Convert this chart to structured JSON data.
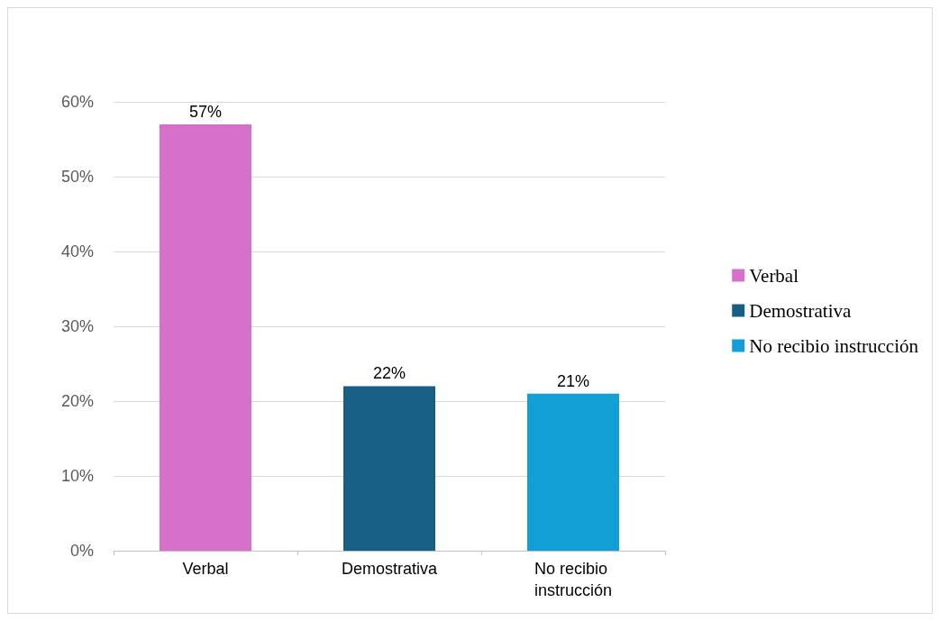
{
  "chart_data": {
    "type": "bar",
    "categories": [
      "Verbal",
      "Demostrativa",
      "No recibio instrucción"
    ],
    "series": [
      {
        "name": "Verbal",
        "color": "#d670c9",
        "values": [
          57,
          null,
          null
        ],
        "value_labels": [
          "57%",
          null,
          null
        ]
      },
      {
        "name": "Demostrativa",
        "color": "#175f84",
        "values": [
          null,
          22,
          null
        ],
        "value_labels": [
          null,
          "22%",
          null
        ]
      },
      {
        "name": "No recibio instrucción",
        "color": "#119fd6",
        "values": [
          null,
          null,
          21
        ],
        "value_labels": [
          null,
          null,
          "21%"
        ]
      }
    ],
    "stacked": true,
    "ylim": [
      0,
      60
    ],
    "yticks": [
      {
        "value": 0,
        "label": "0%"
      },
      {
        "value": 10,
        "label": "10%"
      },
      {
        "value": 20,
        "label": "20%"
      },
      {
        "value": 30,
        "label": "30%"
      },
      {
        "value": 40,
        "label": "40%"
      },
      {
        "value": 50,
        "label": "50%"
      },
      {
        "value": 60,
        "label": "60%"
      }
    ],
    "grid": "y",
    "legend": "right"
  }
}
